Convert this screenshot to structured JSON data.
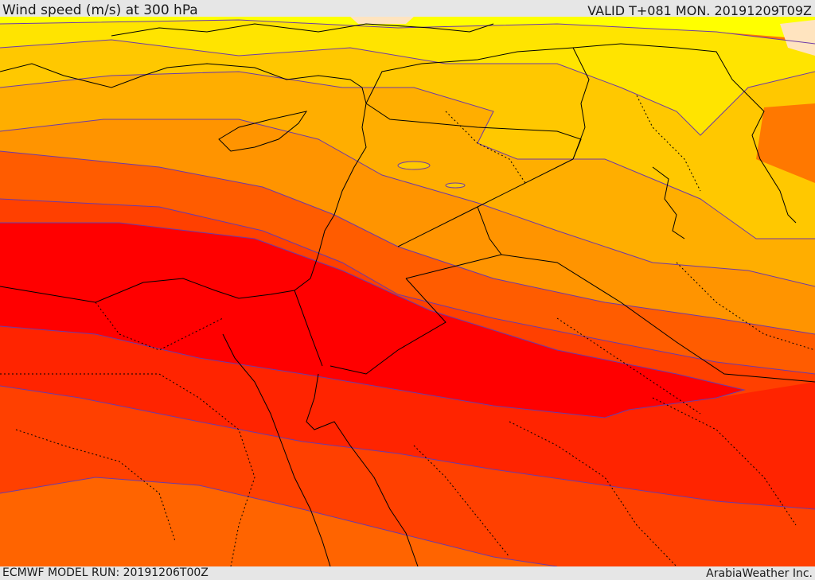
{
  "header": {
    "title": "Wind speed (m/s) at 300 hPa",
    "valid_time": "VALID T+081 MON. 20191209T09Z"
  },
  "footer": {
    "model_run": "ECMWF MODEL RUN: 20191206T00Z",
    "credit": "ArabiaWeather Inc."
  },
  "map": {
    "variable": "wind speed",
    "level": "300 hPa",
    "units": "m/s",
    "fill_colors": [
      "#ffff00",
      "#ffe400",
      "#ffc800",
      "#ffae00",
      "#ff9400",
      "#ff7800",
      "#ff5c00",
      "#ff4000",
      "#ff2400",
      "#ff0000"
    ],
    "contour_color": "#6c3aa8",
    "border_color": "#000000"
  }
}
